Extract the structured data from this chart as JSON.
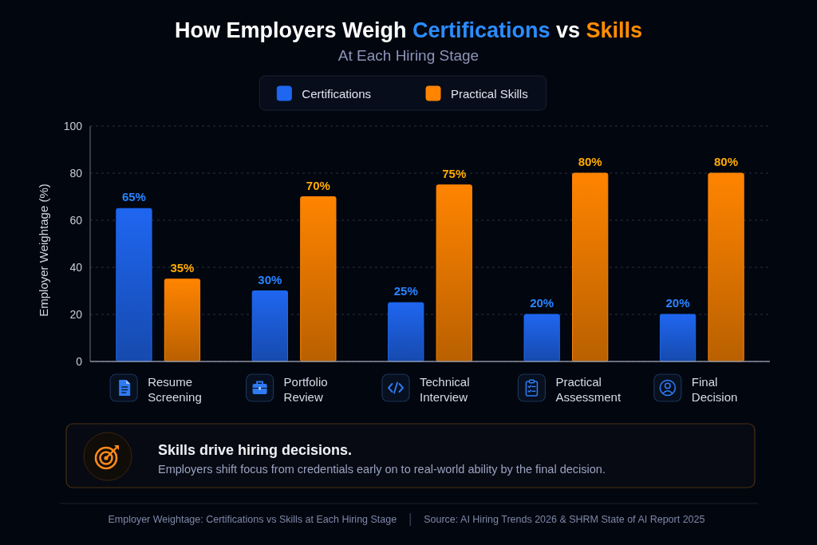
{
  "chart_data": {
    "type": "bar",
    "title": "How Employers Weigh Certifications vs Skills",
    "subtitle": "At Each Hiring Stage",
    "ylabel": "Employer Weightage (%)",
    "categories": [
      "Resume Screening",
      "Portfolio Review",
      "Technical Interview",
      "Practical Assessment",
      "Final Decision"
    ],
    "series": [
      {
        "name": "Certifications",
        "color": "#1f66f0",
        "values": [
          65,
          30,
          25,
          20,
          20
        ],
        "value_labels": [
          "65%",
          "30%",
          "25%",
          "20%",
          "20%"
        ]
      },
      {
        "name": "Practical Skills",
        "color": "#ff8400",
        "values": [
          35,
          70,
          75,
          80,
          80
        ],
        "value_labels": [
          "35%",
          "70%",
          "75%",
          "80%",
          "80%"
        ]
      }
    ],
    "ylim": [
      0,
      100
    ],
    "yticks": [
      0,
      20,
      40,
      60,
      80,
      100
    ],
    "grid": "y",
    "legend": "top",
    "annotations": [
      "Skills drive hiring decisions.",
      "Employers shift focus from credentials early on to real-world ability by the final decision.",
      "Employer Weightage: Certifications vs Skills at Each Hiring Stage",
      "Source:  AI Hiring Trends 2026 & SHRM State of AI Report 2025"
    ]
  }
}
